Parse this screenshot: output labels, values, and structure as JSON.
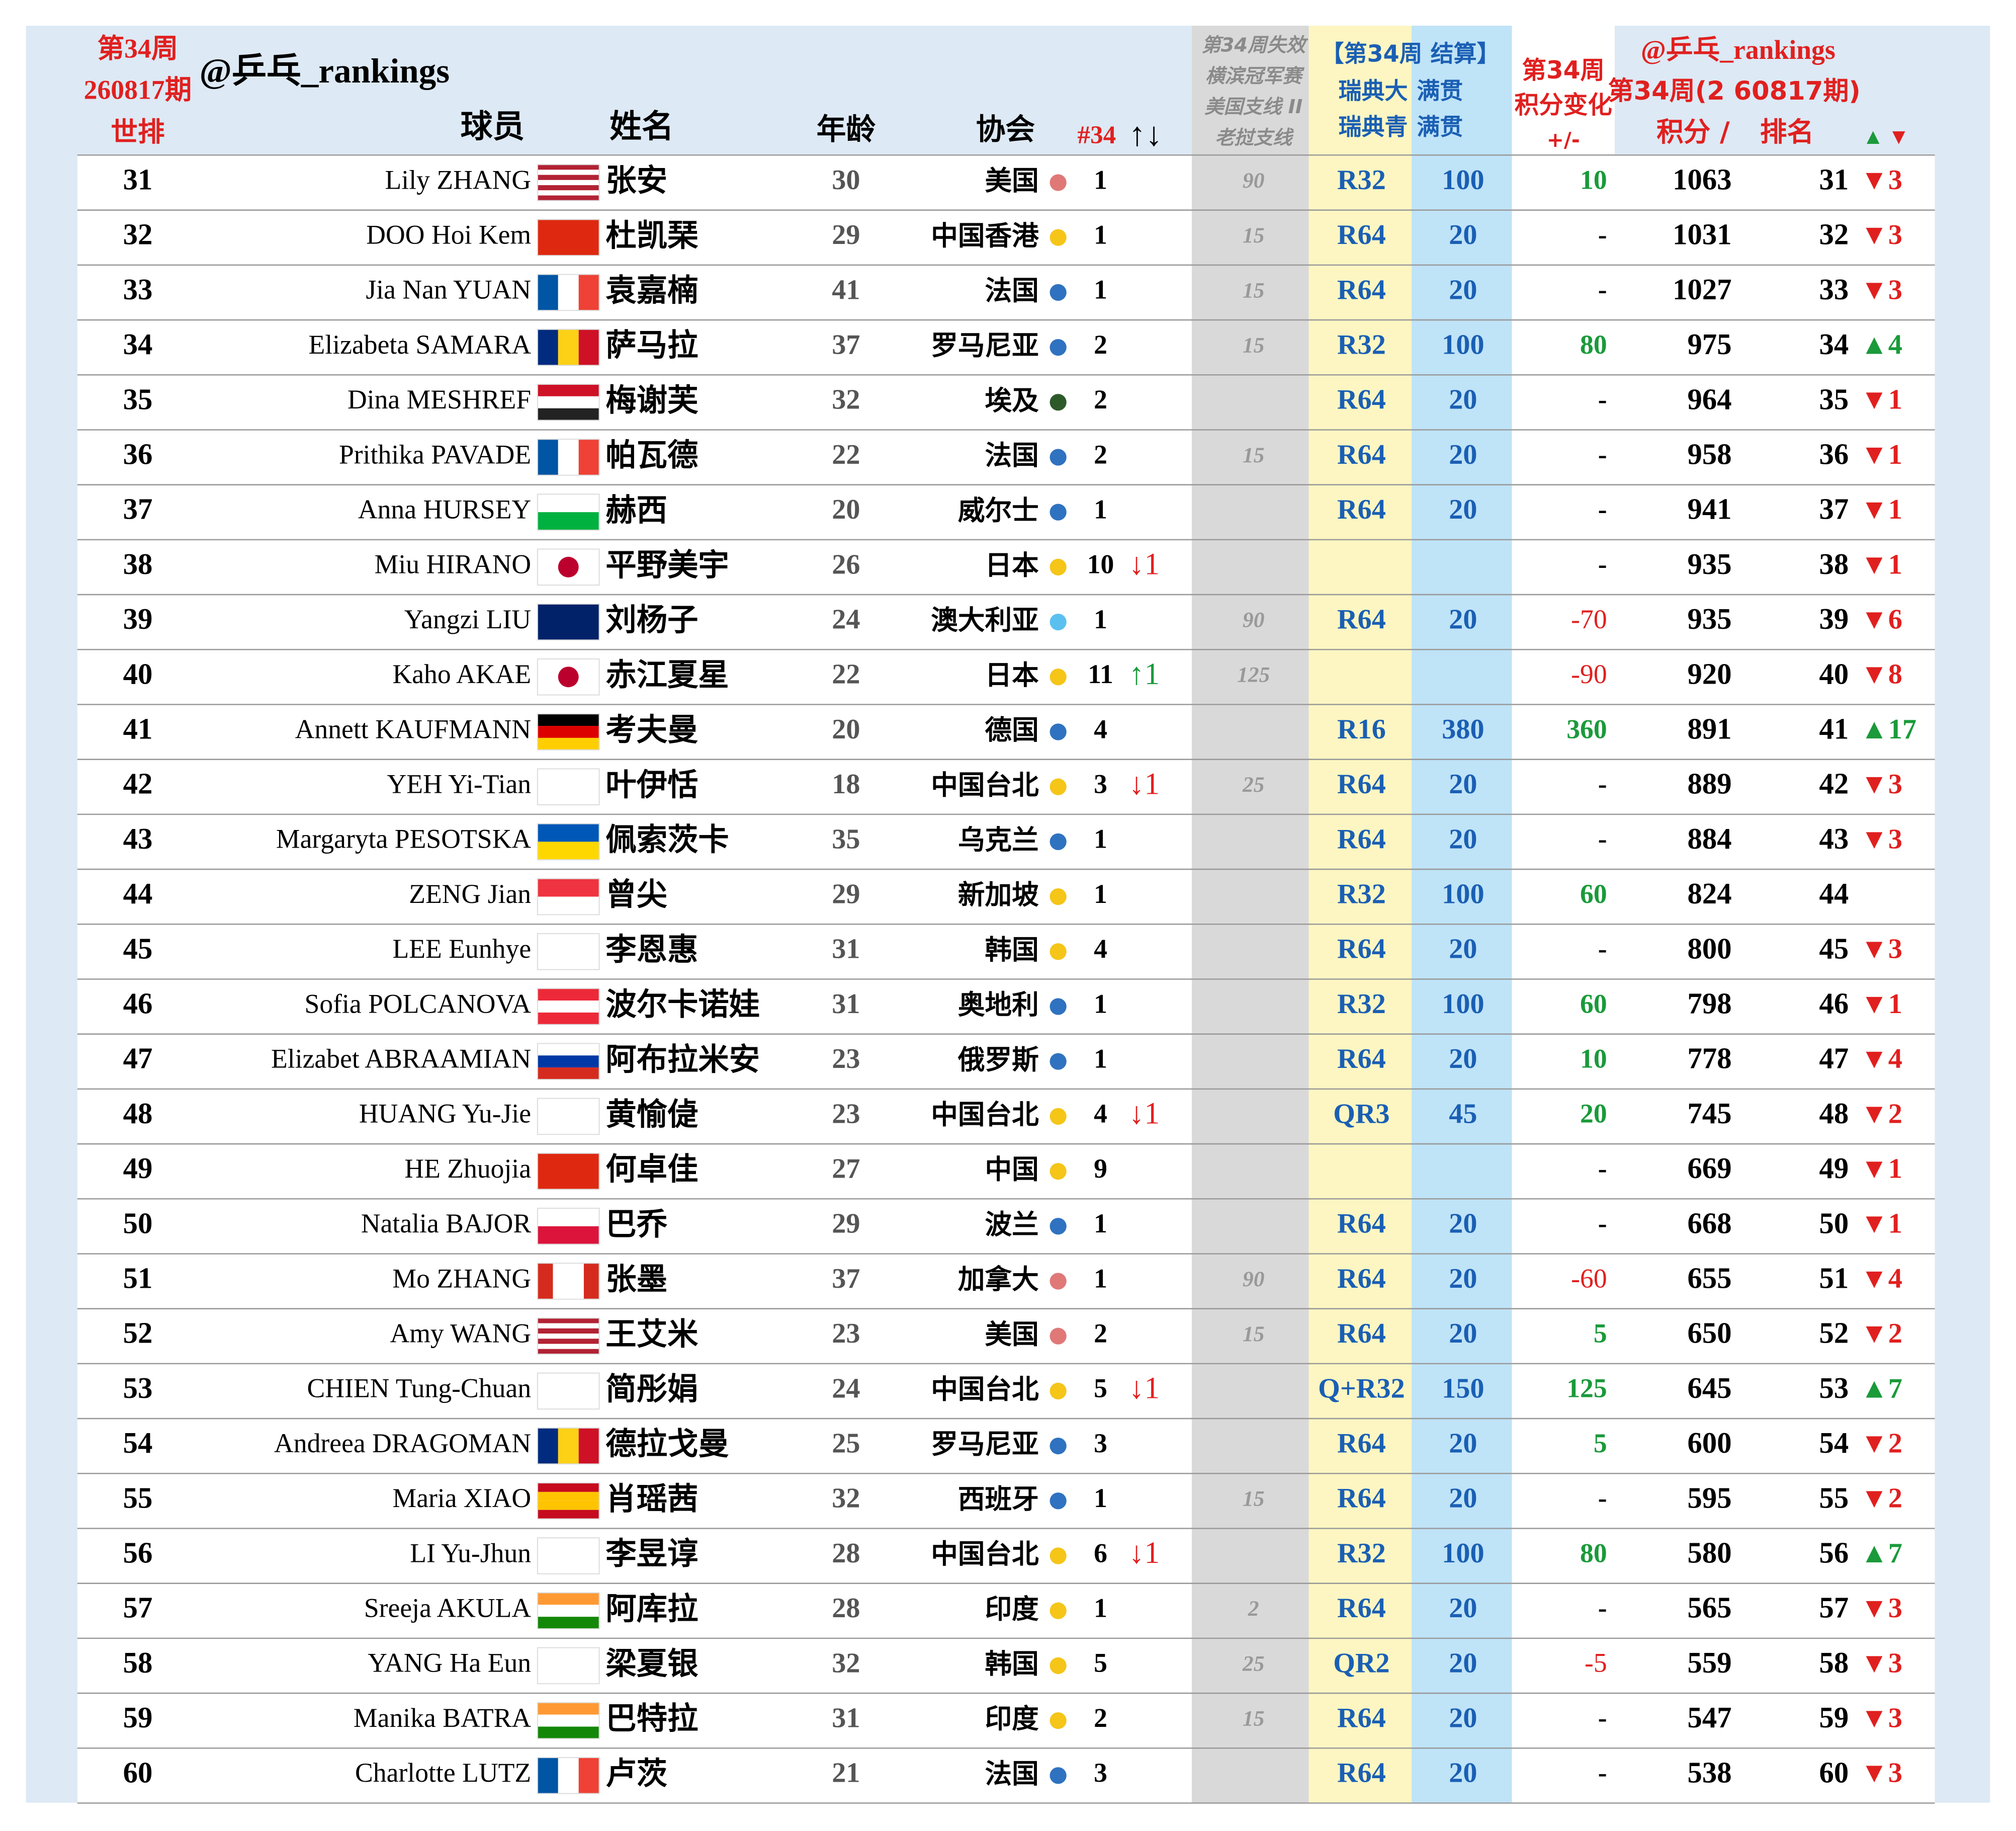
{
  "header": {
    "week": "第34周",
    "issue": "260817期",
    "world_rank": "世排",
    "account": "@乒乓_rankings",
    "player": "球员",
    "name": "姓名",
    "age": "年龄",
    "association": "协会",
    "wtt_rank": "#34",
    "wtt_arrows": "↑↓",
    "lost": [
      "第34周失效",
      "横滨冠军赛",
      "美国支线 II",
      "老挝支线"
    ],
    "settle": "【第34周 结算】",
    "settle_rows": [
      [
        "瑞典大",
        "满贯"
      ],
      [
        "瑞典青",
        "满贯"
      ]
    ],
    "change": [
      "第34周",
      "积分变化",
      "+/-"
    ],
    "right_account": "@乒乓_rankings",
    "right_issue": "第34周(2 60817期)",
    "points": "积分 /",
    "rank": "排名",
    "up": "▲",
    "down": "▼"
  },
  "rows": [
    {
      "rank": 31,
      "en": "Lily ZHANG",
      "zh": "张安",
      "age": 30,
      "assoc": "美国",
      "dot": "#e07878",
      "n34": 1,
      "lost": 90,
      "round": "R32",
      "round_pts": 100,
      "change": 10,
      "points": 1063,
      "new_rank": 31,
      "rank_change": "▼3",
      "rank_change_color": "#e0201f"
    },
    {
      "rank": 32,
      "en": "DOO Hoi Kem",
      "zh": "杜凯琹",
      "age": 29,
      "assoc": "中国香港",
      "dot": "#f5c518",
      "n34": 1,
      "lost": 15,
      "round": "R64",
      "round_pts": 20,
      "change": "-",
      "points": 1031,
      "new_rank": 32,
      "rank_change": "▼3",
      "rank_change_color": "#e0201f"
    },
    {
      "rank": 33,
      "en": "Jia Nan YUAN",
      "zh": "袁嘉楠",
      "age": 41,
      "assoc": "法国",
      "dot": "#2f72c0",
      "n34": 1,
      "lost": 15,
      "round": "R64",
      "round_pts": 20,
      "change": "-",
      "points": 1027,
      "new_rank": 33,
      "rank_change": "▼3",
      "rank_change_color": "#e0201f"
    },
    {
      "rank": 34,
      "en": "Elizabeta SAMARA",
      "zh": "萨马拉",
      "age": 37,
      "assoc": "罗马尼亚",
      "dot": "#2f72c0",
      "n34": 2,
      "lost": 15,
      "round": "R32",
      "round_pts": 100,
      "change": 80,
      "points": 975,
      "new_rank": 34,
      "rank_change": "▲4",
      "rank_change_color": "#1a9a3a"
    },
    {
      "rank": 35,
      "en": "Dina MESHREF",
      "zh": "梅谢芙",
      "age": 32,
      "assoc": "埃及",
      "dot": "#2e5a2a",
      "n34": 2,
      "round": "R64",
      "round_pts": 20,
      "change": "-",
      "points": 964,
      "new_rank": 35,
      "rank_change": "▼1",
      "rank_change_color": "#e0201f"
    },
    {
      "rank": 36,
      "en": "Prithika PAVADE",
      "zh": "帕瓦德",
      "age": 22,
      "assoc": "法国",
      "dot": "#2f72c0",
      "n34": 2,
      "lost": 15,
      "round": "R64",
      "round_pts": 20,
      "change": "-",
      "points": 958,
      "new_rank": 36,
      "rank_change": "▼1",
      "rank_change_color": "#e0201f"
    },
    {
      "rank": 37,
      "en": "Anna HURSEY",
      "zh": "赫西",
      "age": 20,
      "assoc": "威尔士",
      "dot": "#2f72c0",
      "n34": 1,
      "round": "R64",
      "round_pts": 20,
      "change": "-",
      "points": 941,
      "new_rank": 37,
      "rank_change": "▼1",
      "rank_change_color": "#e0201f"
    },
    {
      "rank": 38,
      "en": "Miu HIRANO",
      "zh": "平野美宇",
      "age": 26,
      "assoc": "日本",
      "dot": "#f5c518",
      "n34": 10,
      "n34_change": "↓1",
      "n34_change_color": "#e0201f",
      "change": "-",
      "points": 935,
      "new_rank": 38,
      "rank_change": "▼1",
      "rank_change_color": "#e0201f"
    },
    {
      "rank": 39,
      "en": "Yangzi LIU",
      "zh": "刘杨子",
      "age": 24,
      "assoc": "澳大利亚",
      "dot": "#5bc0f0",
      "n34": 1,
      "lost": 90,
      "round": "R64",
      "round_pts": 20,
      "change": -70,
      "points": 935,
      "new_rank": 39,
      "rank_change": "▼6",
      "rank_change_color": "#e0201f"
    },
    {
      "rank": 40,
      "en": "Kaho AKAE",
      "zh": "赤江夏星",
      "age": 22,
      "assoc": "日本",
      "dot": "#f5c518",
      "n34": 11,
      "n34_change": "↑1",
      "n34_change_color": "#1a9a3a",
      "lost": 125,
      "change": -90,
      "points": 920,
      "new_rank": 40,
      "rank_change": "▼8",
      "rank_change_color": "#e0201f"
    },
    {
      "rank": 41,
      "en": "Annett KAUFMANN",
      "zh": "考夫曼",
      "age": 20,
      "assoc": "德国",
      "dot": "#2f72c0",
      "n34": 4,
      "round": "R16",
      "round_pts": 380,
      "change": 360,
      "points": 891,
      "new_rank": 41,
      "rank_change": "▲17",
      "rank_change_color": "#1a9a3a"
    },
    {
      "rank": 42,
      "en": "YEH Yi-Tian",
      "zh": "叶伊恬",
      "age": 18,
      "assoc": "中国台北",
      "dot": "#f5c518",
      "n34": 3,
      "n34_change": "↓1",
      "n34_change_color": "#e0201f",
      "lost": 25,
      "round": "R64",
      "round_pts": 20,
      "change": "-",
      "points": 889,
      "new_rank": 42,
      "rank_change": "▼3",
      "rank_change_color": "#e0201f"
    },
    {
      "rank": 43,
      "en": "Margaryta PESOTSKA",
      "zh": "佩索茨卡",
      "age": 35,
      "assoc": "乌克兰",
      "dot": "#2f72c0",
      "n34": 1,
      "round": "R64",
      "round_pts": 20,
      "change": "-",
      "points": 884,
      "new_rank": 43,
      "rank_change": "▼3",
      "rank_change_color": "#e0201f"
    },
    {
      "rank": 44,
      "en": "ZENG Jian",
      "zh": "曾尖",
      "age": 29,
      "assoc": "新加坡",
      "dot": "#f5c518",
      "n34": 1,
      "round": "R32",
      "round_pts": 100,
      "change": 60,
      "points": 824,
      "new_rank": 44
    },
    {
      "rank": 45,
      "en": "LEE Eunhye",
      "zh": "李恩惠",
      "age": 31,
      "assoc": "韩国",
      "dot": "#f5c518",
      "n34": 4,
      "round": "R64",
      "round_pts": 20,
      "change": "-",
      "points": 800,
      "new_rank": 45,
      "rank_change": "▼3",
      "rank_change_color": "#e0201f"
    },
    {
      "rank": 46,
      "en": "Sofia POLCANOVA",
      "zh": "波尔卡诺娃",
      "age": 31,
      "assoc": "奥地利",
      "dot": "#2f72c0",
      "n34": 1,
      "round": "R32",
      "round_pts": 100,
      "change": 60,
      "points": 798,
      "new_rank": 46,
      "rank_change": "▼1",
      "rank_change_color": "#e0201f"
    },
    {
      "rank": 47,
      "en": "Elizabet ABRAAMIAN",
      "zh": "阿布拉米安",
      "age": 23,
      "assoc": "俄罗斯",
      "dot": "#2f72c0",
      "n34": 1,
      "round": "R64",
      "round_pts": 20,
      "change": 10,
      "points": 778,
      "new_rank": 47,
      "rank_change": "▼4",
      "rank_change_color": "#e0201f"
    },
    {
      "rank": 48,
      "en": "HUANG Yu-Jie",
      "zh": "黄愉偼",
      "age": 23,
      "assoc": "中国台北",
      "dot": "#f5c518",
      "n34": 4,
      "n34_change": "↓1",
      "n34_change_color": "#e0201f",
      "round": "QR3",
      "round_pts": 45,
      "change": 20,
      "points": 745,
      "new_rank": 48,
      "rank_change": "▼2",
      "rank_change_color": "#e0201f"
    },
    {
      "rank": 49,
      "en": "HE Zhuojia",
      "zh": "何卓佳",
      "age": 27,
      "assoc": "中国",
      "dot": "#f5c518",
      "n34": 9,
      "change": "-",
      "points": 669,
      "new_rank": 49,
      "rank_change": "▼1",
      "rank_change_color": "#e0201f"
    },
    {
      "rank": 50,
      "en": "Natalia BAJOR",
      "zh": "巴乔",
      "age": 29,
      "assoc": "波兰",
      "dot": "#2f72c0",
      "n34": 1,
      "round": "R64",
      "round_pts": 20,
      "change": "-",
      "points": 668,
      "new_rank": 50,
      "rank_change": "▼1",
      "rank_change_color": "#e0201f"
    },
    {
      "rank": 51,
      "en": "Mo ZHANG",
      "zh": "张墨",
      "age": 37,
      "assoc": "加拿大",
      "dot": "#e07878",
      "n34": 1,
      "lost": 90,
      "round": "R64",
      "round_pts": 20,
      "change": -60,
      "points": 655,
      "new_rank": 51,
      "rank_change": "▼4",
      "rank_change_color": "#e0201f"
    },
    {
      "rank": 52,
      "en": "Amy WANG",
      "zh": "王艾米",
      "age": 23,
      "assoc": "美国",
      "dot": "#e07878",
      "n34": 2,
      "lost": 15,
      "round": "R64",
      "round_pts": 20,
      "change": 5,
      "points": 650,
      "new_rank": 52,
      "rank_change": "▼2",
      "rank_change_color": "#e0201f"
    },
    {
      "rank": 53,
      "en": "CHIEN Tung-Chuan",
      "zh": "简彤娟",
      "age": 24,
      "assoc": "中国台北",
      "dot": "#f5c518",
      "n34": 5,
      "n34_change": "↓1",
      "n34_change_color": "#e0201f",
      "round": "Q+R32",
      "round_pts": 150,
      "change": 125,
      "points": 645,
      "new_rank": 53,
      "rank_change": "▲7",
      "rank_change_color": "#1a9a3a"
    },
    {
      "rank": 54,
      "en": "Andreea DRAGOMAN",
      "zh": "德拉戈曼",
      "age": 25,
      "assoc": "罗马尼亚",
      "dot": "#2f72c0",
      "n34": 3,
      "round": "R64",
      "round_pts": 20,
      "change": 5,
      "points": 600,
      "new_rank": 54,
      "rank_change": "▼2",
      "rank_change_color": "#e0201f"
    },
    {
      "rank": 55,
      "en": "Maria XIAO",
      "zh": "肖瑶茜",
      "age": 32,
      "assoc": "西班牙",
      "dot": "#2f72c0",
      "n34": 1,
      "lost": 15,
      "round": "R64",
      "round_pts": 20,
      "change": "-",
      "points": 595,
      "new_rank": 55,
      "rank_change": "▼2",
      "rank_change_color": "#e0201f"
    },
    {
      "rank": 56,
      "en": "LI Yu-Jhun",
      "zh": "李昱谆",
      "age": 28,
      "assoc": "中国台北",
      "dot": "#f5c518",
      "n34": 6,
      "n34_change": "↓1",
      "n34_change_color": "#e0201f",
      "round": "R32",
      "round_pts": 100,
      "change": 80,
      "points": 580,
      "new_rank": 56,
      "rank_change": "▲7",
      "rank_change_color": "#1a9a3a"
    },
    {
      "rank": 57,
      "en": "Sreeja AKULA",
      "zh": "阿库拉",
      "age": 28,
      "assoc": "印度",
      "dot": "#f5c518",
      "n34": 1,
      "lost": 2,
      "round": "R64",
      "round_pts": 20,
      "change": "-",
      "points": 565,
      "new_rank": 57,
      "rank_change": "▼3",
      "rank_change_color": "#e0201f"
    },
    {
      "rank": 58,
      "en": "YANG Ha Eun",
      "zh": "梁夏银",
      "age": 32,
      "assoc": "韩国",
      "dot": "#f5c518",
      "n34": 5,
      "lost": 25,
      "round": "QR2",
      "round_pts": 20,
      "change": -5,
      "points": 559,
      "new_rank": 58,
      "rank_change": "▼3",
      "rank_change_color": "#e0201f"
    },
    {
      "rank": 59,
      "en": "Manika BATRA",
      "zh": "巴特拉",
      "age": 31,
      "assoc": "印度",
      "dot": "#f5c518",
      "n34": 2,
      "lost": 15,
      "round": "R64",
      "round_pts": 20,
      "change": "-",
      "points": 547,
      "new_rank": 59,
      "rank_change": "▼3",
      "rank_change_color": "#e0201f"
    },
    {
      "rank": 60,
      "en": "Charlotte LUTZ",
      "zh": "卢茨",
      "age": 21,
      "assoc": "法国",
      "dot": "#2f72c0",
      "n34": 3,
      "round": "R64",
      "round_pts": 20,
      "change": "-",
      "points": 538,
      "new_rank": 60,
      "rank_change": "▼3",
      "rank_change_color": "#e0201f"
    }
  ]
}
